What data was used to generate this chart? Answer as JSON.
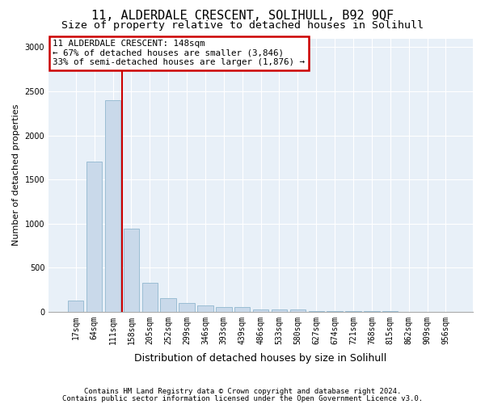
{
  "title_line1": "11, ALDERDALE CRESCENT, SOLIHULL, B92 9QF",
  "title_line2": "Size of property relative to detached houses in Solihull",
  "xlabel": "Distribution of detached houses by size in Solihull",
  "ylabel": "Number of detached properties",
  "footer_line1": "Contains HM Land Registry data © Crown copyright and database right 2024.",
  "footer_line2": "Contains public sector information licensed under the Open Government Licence v3.0.",
  "bar_labels": [
    "17sqm",
    "64sqm",
    "111sqm",
    "158sqm",
    "205sqm",
    "252sqm",
    "299sqm",
    "346sqm",
    "393sqm",
    "439sqm",
    "486sqm",
    "533sqm",
    "580sqm",
    "627sqm",
    "674sqm",
    "721sqm",
    "768sqm",
    "815sqm",
    "862sqm",
    "909sqm",
    "956sqm"
  ],
  "bar_values": [
    130,
    1700,
    2400,
    940,
    330,
    155,
    100,
    75,
    55,
    50,
    30,
    30,
    30,
    10,
    5,
    5,
    5,
    3,
    2,
    2,
    2
  ],
  "bar_color": "#c9d9ea",
  "bar_edge_color": "#9bbdd4",
  "vline_color": "#cc0000",
  "vline_x": 2.5,
  "annotation_text": "11 ALDERDALE CRESCENT: 148sqm\n← 67% of detached houses are smaller (3,846)\n33% of semi-detached houses are larger (1,876) →",
  "annotation_box_facecolor": "#ffffff",
  "annotation_box_edgecolor": "#cc0000",
  "ylim": [
    0,
    3100
  ],
  "yticks": [
    0,
    500,
    1000,
    1500,
    2000,
    2500,
    3000
  ],
  "figure_bg": "#ffffff",
  "plot_bg_color": "#e8f0f8",
  "grid_color": "#ffffff",
  "title_fontsize": 11,
  "subtitle_fontsize": 9.5,
  "ylabel_fontsize": 8,
  "xlabel_fontsize": 9,
  "tick_fontsize": 7,
  "footer_fontsize": 6.5
}
